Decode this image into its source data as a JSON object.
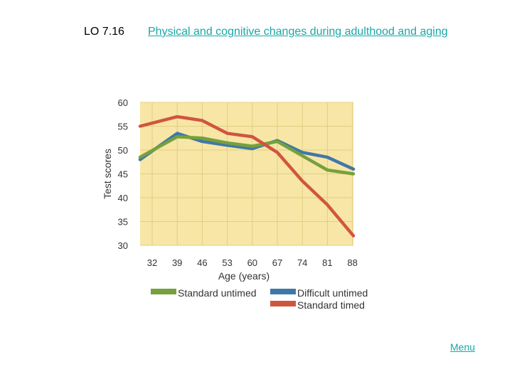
{
  "header": {
    "lo": "LO 7.16",
    "title": "Physical and cognitive changes during adulthood and aging"
  },
  "footer": {
    "menu_label": "Menu"
  },
  "colors": {
    "plot_bg": "#f7e6a6",
    "grid": "#e2cf83",
    "standard_untimed": "#76a03c",
    "difficult_untimed": "#3f78a8",
    "standard_timed": "#d0553f"
  },
  "chart_data": {
    "type": "line",
    "xlabel": "Age (years)",
    "ylabel": "Test scores",
    "x": [
      32,
      39,
      46,
      53,
      60,
      67,
      74,
      81,
      88
    ],
    "ylim": [
      30,
      60
    ],
    "yticks": [
      30,
      35,
      40,
      45,
      50,
      55,
      60
    ],
    "grid": true,
    "legend_position": "bottom",
    "series": [
      {
        "name": "Standard untimed",
        "values": [
          48.5,
          52.8,
          52.5,
          51.5,
          50.8,
          51.8,
          48.8,
          45.8,
          45
        ]
      },
      {
        "name": "Difficult untimed",
        "values": [
          48,
          53.5,
          51.8,
          51,
          50.3,
          52,
          49.5,
          48.5,
          46
        ]
      },
      {
        "name": "Standard timed",
        "values": [
          55,
          57,
          56.2,
          53.5,
          52.8,
          49.5,
          43.5,
          38.5,
          32
        ]
      }
    ]
  }
}
